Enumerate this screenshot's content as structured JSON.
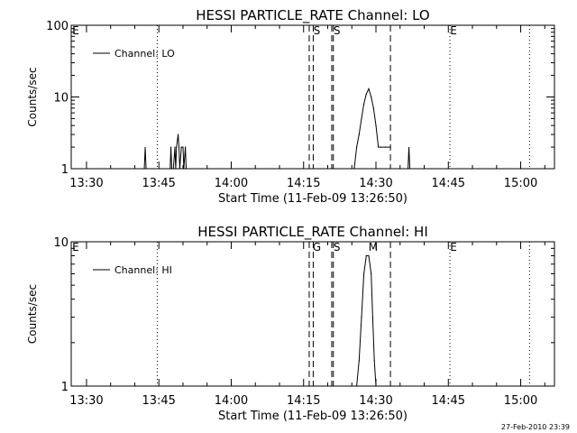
{
  "footer_timestamp": "27-Feb-2010 23:39",
  "chart_data": [
    {
      "type": "line",
      "title": "HESSI PARTICLE_RATE Channel: LO",
      "xlabel": "Start Time (11-Feb-09 13:26:50)",
      "ylabel": "Counts/sec",
      "yscale": "log",
      "ylim": [
        1,
        100
      ],
      "xlim": [
        "13:26:50",
        "15:07:00"
      ],
      "xticks": [
        "13:30",
        "13:45",
        "14:00",
        "14:15",
        "14:30",
        "14:45",
        "15:00"
      ],
      "yticks": [
        "1",
        "10",
        "100"
      ],
      "legend": "top-left",
      "series": [
        {
          "name": "Channel: LO",
          "x": [
            "13:47:20",
            "13:47:30",
            "13:47:40",
            "13:48:00",
            "13:48:20",
            "13:48:30",
            "13:48:40",
            "13:49:00",
            "13:49:10",
            "13:49:20",
            "13:49:40",
            "13:50:00",
            "13:50:10",
            "13:50:30",
            "13:50:40",
            "14:25:30",
            "14:26:00",
            "14:26:30",
            "14:27:00",
            "14:27:30",
            "14:28:00",
            "14:28:30",
            "14:29:00",
            "14:29:30",
            "14:30:00",
            "14:30:30",
            "14:31:00",
            "14:32:00",
            "14:33:00"
          ],
          "y": [
            1,
            2,
            1,
            1,
            2,
            1,
            2,
            3,
            2,
            1,
            2,
            2,
            1,
            2,
            1,
            1,
            2,
            3,
            5,
            8,
            11,
            13,
            10,
            7,
            4,
            2,
            2,
            2,
            2
          ]
        }
      ],
      "spikes": [
        {
          "x": "13:42:10",
          "y": 2
        },
        {
          "x": "14:36:50",
          "y": 2
        }
      ],
      "markers": [
        {
          "x": "13:27:00",
          "label": "E",
          "style": "none"
        },
        {
          "x": "13:44:40",
          "label": "",
          "style": "dotted"
        },
        {
          "x": "14:16:10",
          "label": "",
          "style": "dashed"
        },
        {
          "x": "14:17:00",
          "label": "S",
          "style": "dashed"
        },
        {
          "x": "14:20:50",
          "label": "",
          "style": "dashed"
        },
        {
          "x": "14:21:10",
          "label": "S",
          "style": "dashed"
        },
        {
          "x": "14:33:00",
          "label": "",
          "style": "dashed"
        },
        {
          "x": "14:45:20",
          "label": "E",
          "style": "dotted"
        },
        {
          "x": "15:01:50",
          "label": "",
          "style": "dotted"
        }
      ]
    },
    {
      "type": "line",
      "title": "HESSI PARTICLE_RATE Channel: HI",
      "xlabel": "Start Time (11-Feb-09 13:26:50)",
      "ylabel": "Counts/sec",
      "yscale": "log",
      "ylim": [
        1,
        10
      ],
      "xlim": [
        "13:26:50",
        "15:07:00"
      ],
      "xticks": [
        "13:30",
        "13:45",
        "14:00",
        "14:15",
        "14:30",
        "14:45",
        "15:00"
      ],
      "yticks": [
        "1",
        "10"
      ],
      "legend": "top-left",
      "series": [
        {
          "name": "Channel: HI",
          "x": [
            "14:26:00",
            "14:26:30",
            "14:27:00",
            "14:27:30",
            "14:28:00",
            "14:28:30",
            "14:29:00",
            "14:29:20",
            "14:29:40",
            "14:30:00"
          ],
          "y": [
            1,
            1.5,
            3,
            6,
            8,
            8,
            6,
            3,
            1.5,
            1
          ]
        }
      ],
      "spikes": [],
      "markers": [
        {
          "x": "13:27:00",
          "label": "E",
          "style": "none"
        },
        {
          "x": "13:44:40",
          "label": "",
          "style": "dotted"
        },
        {
          "x": "14:16:10",
          "label": "",
          "style": "dashed"
        },
        {
          "x": "14:17:00",
          "label": "G",
          "style": "dashed"
        },
        {
          "x": "14:20:50",
          "label": "",
          "style": "dashed"
        },
        {
          "x": "14:21:10",
          "label": "S",
          "style": "dashed"
        },
        {
          "x": "14:28:40",
          "label": "M",
          "style": "none"
        },
        {
          "x": "14:33:00",
          "label": "",
          "style": "dashed"
        },
        {
          "x": "14:45:20",
          "label": "E",
          "style": "dotted"
        },
        {
          "x": "15:01:50",
          "label": "",
          "style": "dotted"
        }
      ]
    }
  ]
}
